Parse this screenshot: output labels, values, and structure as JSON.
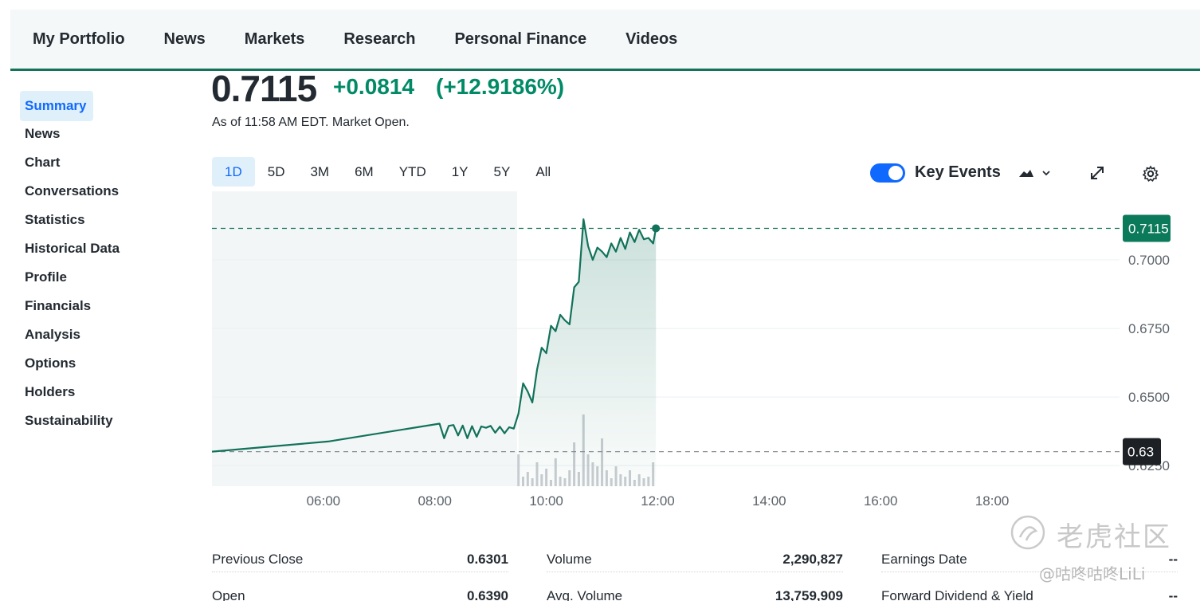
{
  "nav": {
    "items": [
      "My Portfolio",
      "News",
      "Markets",
      "Research",
      "Personal Finance",
      "Videos"
    ]
  },
  "sidebar": {
    "items": [
      "Summary",
      "News",
      "Chart",
      "Conversations",
      "Statistics",
      "Historical Data",
      "Profile",
      "Financials",
      "Analysis",
      "Options",
      "Holders",
      "Sustainability"
    ],
    "active": "Summary"
  },
  "quote": {
    "price": "0.7115",
    "change": "+0.0814",
    "change_pct": "(+12.9186%)",
    "as_of": "As of 11:58 AM EDT. Market Open."
  },
  "ranges": {
    "items": [
      "1D",
      "5D",
      "3M",
      "6M",
      "YTD",
      "1Y",
      "5Y",
      "All"
    ],
    "active": "1D"
  },
  "key_events": {
    "label": "Key Events",
    "enabled": true
  },
  "icons": {
    "chart_type": "mountain-chart-icon",
    "dropdown": "chevron-down-icon",
    "expand": "expand-icon",
    "settings": "gear-icon"
  },
  "colors": {
    "up": "#008a66",
    "line": "#12725a",
    "accent": "#0f69ff",
    "prev_close_badge": "#1d2126"
  },
  "chart_data": {
    "type": "area",
    "title": "",
    "xlabel": "",
    "ylabel": "",
    "x_ticks": [
      "06:00",
      "08:00",
      "10:00",
      "12:00",
      "14:00",
      "16:00",
      "18:00"
    ],
    "y_ticks": [
      "0.7000",
      "0.6750",
      "0.6500",
      "0.6250"
    ],
    "ylim": [
      0.6175,
      0.725
    ],
    "current_price_label": "0.7115",
    "current_price": 0.7115,
    "previous_close_label": "0.63",
    "previous_close": 0.6301,
    "series": [
      {
        "x": [
          "04:00",
          "06:05",
          "08:05",
          "08:10",
          "08:15",
          "08:20",
          "08:25",
          "08:30",
          "08:35",
          "08:40",
          "08:45",
          "08:50",
          "08:55",
          "09:00",
          "09:05",
          "09:10",
          "09:15",
          "09:20",
          "09:25",
          "09:30",
          "09:35",
          "09:40",
          "09:45",
          "09:50",
          "09:55",
          "10:00",
          "10:05",
          "10:10",
          "10:15",
          "10:20",
          "10:25",
          "10:30",
          "10:35",
          "10:40",
          "10:45",
          "10:50",
          "10:55",
          "11:00",
          "11:05",
          "11:10",
          "11:15",
          "11:20",
          "11:25",
          "11:30",
          "11:35",
          "11:40",
          "11:45",
          "11:50",
          "11:55",
          "11:58"
        ],
        "values": [
          0.6301,
          0.6338,
          0.6403,
          0.635,
          0.6395,
          0.6398,
          0.636,
          0.6396,
          0.635,
          0.6394,
          0.6355,
          0.6393,
          0.6388,
          0.6395,
          0.637,
          0.6392,
          0.6368,
          0.639,
          0.6385,
          0.644,
          0.655,
          0.652,
          0.648,
          0.66,
          0.668,
          0.666,
          0.676,
          0.674,
          0.68,
          0.678,
          0.6765,
          0.69,
          0.692,
          0.7148,
          0.705,
          0.7,
          0.7045,
          0.703,
          0.701,
          0.706,
          0.703,
          0.708,
          0.704,
          0.71,
          0.7065,
          0.711,
          0.7075,
          0.708,
          0.706,
          0.7115
        ]
      }
    ],
    "volume": {
      "x": [
        "09:30",
        "09:35",
        "09:40",
        "09:45",
        "09:50",
        "09:55",
        "10:00",
        "10:05",
        "10:10",
        "10:15",
        "10:20",
        "10:25",
        "10:30",
        "10:35",
        "10:40",
        "10:45",
        "10:50",
        "10:55",
        "11:00",
        "11:05",
        "11:10",
        "11:15",
        "11:20",
        "11:25",
        "11:30",
        "11:35",
        "11:40",
        "11:45",
        "11:50",
        "11:55"
      ],
      "values": [
        40,
        12,
        18,
        10,
        30,
        15,
        22,
        8,
        35,
        12,
        10,
        20,
        55,
        18,
        90,
        40,
        30,
        25,
        60,
        20,
        10,
        25,
        15,
        12,
        20,
        8,
        15,
        10,
        12,
        30
      ]
    }
  },
  "stats": {
    "rows": [
      {
        "label": "Previous Close",
        "value": "0.6301"
      },
      {
        "label": "Volume",
        "value": "2,290,827"
      },
      {
        "label": "Earnings Date",
        "value": "--"
      },
      {
        "label": "Open",
        "value": "0.6390"
      },
      {
        "label": "Avg. Volume",
        "value": "13,759,909"
      },
      {
        "label": "Forward Dividend & Yield",
        "value": "--"
      }
    ]
  },
  "watermark": {
    "text": "老虎社区",
    "handle": "@咕咚咕咚LiLi"
  }
}
